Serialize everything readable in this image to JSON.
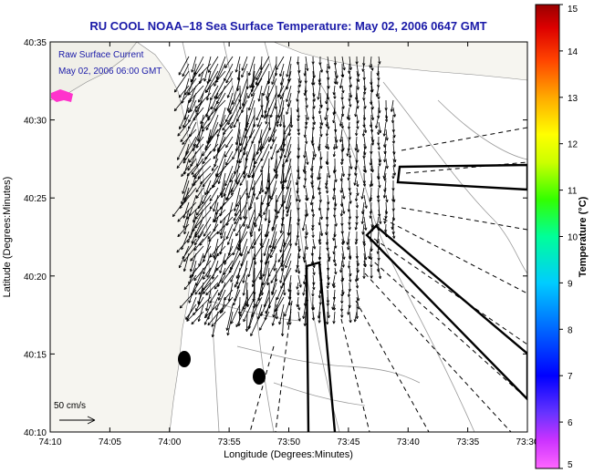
{
  "header": {
    "title": "RU COOL  NOAA–18  Sea Surface Temperature:  May 02, 2006 0647 GMT"
  },
  "legend": {
    "line1": "Raw Surface Current",
    "line2": "May 02, 2006 06:00 GMT",
    "scale_label": "50 cm/s"
  },
  "axes": {
    "xlabel": "Longitude (Degrees:Minutes)",
    "ylabel": "Latitude (Degrees:Minutes)",
    "x_ticks": [
      "74:10",
      "74:05",
      "74:00",
      "73:55",
      "73:50",
      "73:45",
      "73:40",
      "73:35",
      "73:30"
    ],
    "y_ticks": [
      "40:35",
      "40:30",
      "40:25",
      "40:20",
      "40:15",
      "40:10"
    ]
  },
  "colorbar": {
    "label": "Temperature (°C)",
    "ticks": [
      "15",
      "14",
      "13",
      "12",
      "11",
      "10",
      "9",
      "8",
      "7",
      "6",
      "5"
    ],
    "min": 5,
    "max": 15
  },
  "colors": {
    "title": "#1a1aa8",
    "legend_text": "#1a1aa8",
    "land": "#f6f5f0",
    "contour": "#9a9a9a",
    "vector": "#000000",
    "magenta_spot": "#ff33cc"
  }
}
